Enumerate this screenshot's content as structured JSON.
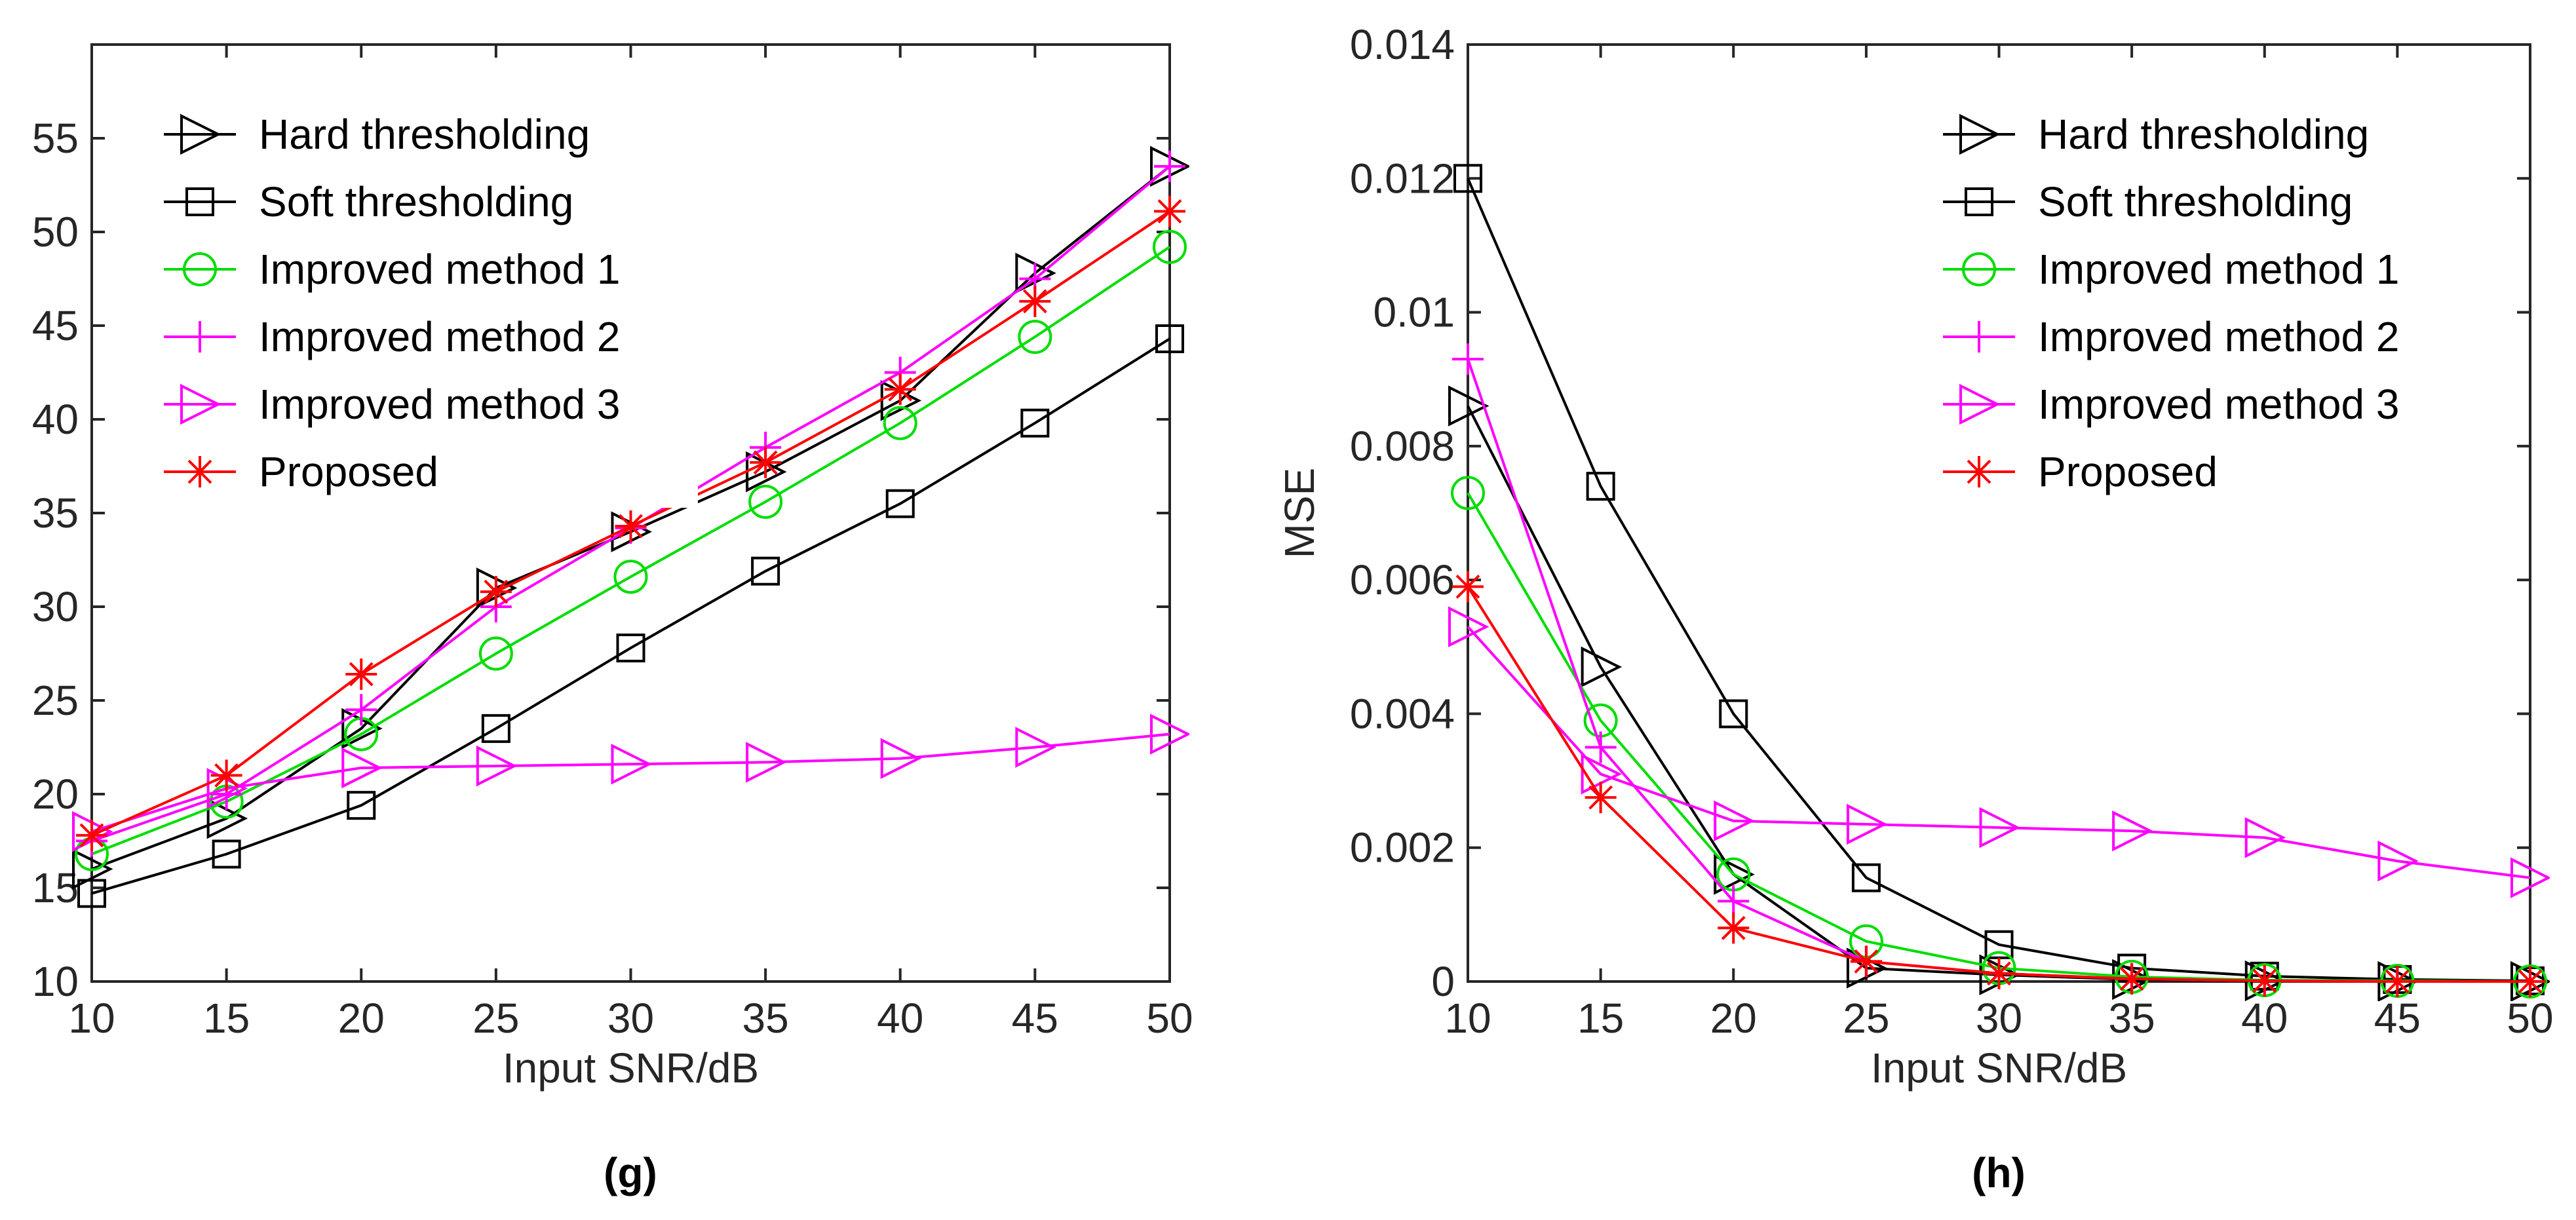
{
  "chart_data": [
    {
      "type": "line",
      "panel": "g",
      "caption": "(g)",
      "title": "",
      "xlabel": "Input SNR/dB",
      "ylabel": "",
      "xlim": [
        10,
        50
      ],
      "ylim": [
        10,
        60
      ],
      "x": [
        10,
        15,
        20,
        25,
        30,
        35,
        40,
        45,
        50
      ],
      "xticks": [
        "10",
        "15",
        "20",
        "25",
        "30",
        "35",
        "40",
        "45",
        "50"
      ],
      "yticks": [
        "10",
        "15",
        "20",
        "25",
        "30",
        "35",
        "40",
        "45",
        "50",
        "55"
      ],
      "legend_position": "top-left",
      "grid": false,
      "series": [
        {
          "name": "Hard thresholding",
          "color": "#000000",
          "marker": "triangle-right",
          "values": [
            16.0,
            18.7,
            23.5,
            31.0,
            34.0,
            37.2,
            41.0,
            47.8,
            53.5
          ]
        },
        {
          "name": "Soft thresholding",
          "color": "#000000",
          "marker": "square",
          "values": [
            14.7,
            16.8,
            19.4,
            23.5,
            27.8,
            31.9,
            35.5,
            39.8,
            44.3
          ]
        },
        {
          "name": "Improved method 1",
          "color": "#00dd00",
          "marker": "circle",
          "values": [
            16.8,
            19.6,
            23.2,
            27.5,
            31.6,
            35.6,
            39.8,
            44.4,
            49.2
          ]
        },
        {
          "name": "Improved method 2",
          "color": "#ff00ff",
          "marker": "plus",
          "values": [
            17.5,
            20.0,
            24.5,
            30.0,
            34.2,
            38.5,
            42.5,
            47.5,
            53.5
          ]
        },
        {
          "name": "Improved method 3",
          "color": "#ff00ff",
          "marker": "triangle-right",
          "values": [
            18.0,
            20.3,
            21.4,
            21.5,
            21.6,
            21.7,
            21.9,
            22.5,
            23.2
          ]
        },
        {
          "name": "Proposed",
          "color": "#ff0000",
          "marker": "asterisk",
          "values": [
            17.8,
            21.0,
            26.4,
            30.8,
            34.3,
            37.7,
            41.6,
            46.3,
            51.1
          ]
        }
      ]
    },
    {
      "type": "line",
      "panel": "h",
      "caption": "(h)",
      "title": "",
      "xlabel": "Input SNR/dB",
      "ylabel": "MSE",
      "xlim": [
        10,
        50
      ],
      "ylim": [
        0,
        0.014
      ],
      "x": [
        10,
        15,
        20,
        25,
        30,
        35,
        40,
        45,
        50
      ],
      "xticks": [
        "10",
        "15",
        "20",
        "25",
        "30",
        "35",
        "40",
        "45",
        "50"
      ],
      "yticks": [
        "0",
        "0.002",
        "0.004",
        "0.006",
        "0.008",
        "0.01",
        "0.012",
        "0.014"
      ],
      "legend_position": "top-right",
      "grid": false,
      "series": [
        {
          "name": "Hard thresholding",
          "color": "#000000",
          "marker": "triangle-right",
          "values": [
            0.0086,
            0.0047,
            0.0016,
            0.0002,
            0.0001,
            3e-05,
            1e-05,
            0.0,
            0.0
          ]
        },
        {
          "name": "Soft thresholding",
          "color": "#000000",
          "marker": "square",
          "values": [
            0.012,
            0.0074,
            0.004,
            0.00155,
            0.00055,
            0.0002,
            8e-05,
            3e-05,
            1e-05
          ]
        },
        {
          "name": "Improved method 1",
          "color": "#00dd00",
          "marker": "circle",
          "values": [
            0.0073,
            0.0039,
            0.0016,
            0.0006,
            0.0002,
            7e-05,
            2e-05,
            1e-05,
            0.0
          ]
        },
        {
          "name": "Improved method 2",
          "color": "#ff00ff",
          "marker": "plus",
          "values": [
            0.0093,
            0.0035,
            0.0012,
            0.0003,
            0.00012,
            4e-05,
            1e-05,
            0.0,
            0.0
          ]
        },
        {
          "name": "Improved method 3",
          "color": "#ff00ff",
          "marker": "triangle-right",
          "values": [
            0.0053,
            0.0031,
            0.0024,
            0.00235,
            0.0023,
            0.00225,
            0.00215,
            0.0018,
            0.00155
          ]
        },
        {
          "name": "Proposed",
          "color": "#ff0000",
          "marker": "asterisk",
          "values": [
            0.0059,
            0.00275,
            0.0008,
            0.0003,
            0.00012,
            4e-05,
            1e-05,
            0.0,
            0.0
          ]
        }
      ]
    }
  ]
}
